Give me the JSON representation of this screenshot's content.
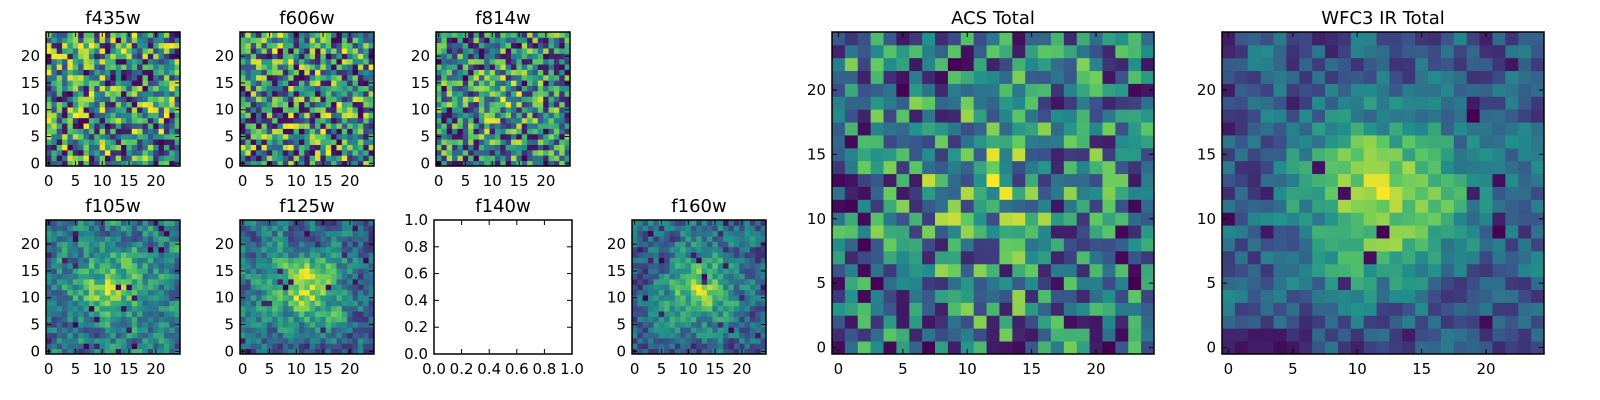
{
  "chart_data": [
    {
      "type": "heatmap",
      "title": "f435w",
      "n": 25,
      "seed": 11,
      "contrast": 1.0,
      "smooth": 0,
      "blob": 0,
      "xticks": [
        0,
        5,
        10,
        15,
        20
      ],
      "yticks": [
        0,
        5,
        10,
        15,
        20
      ],
      "xlim": [
        -0.5,
        24.5
      ],
      "ylim": [
        -0.5,
        24.5
      ]
    },
    {
      "type": "heatmap",
      "title": "f606w",
      "n": 25,
      "seed": 23,
      "contrast": 1.0,
      "smooth": 0,
      "blob": 0,
      "xticks": [
        0,
        5,
        10,
        15,
        20
      ],
      "yticks": [
        0,
        5,
        10,
        15,
        20
      ],
      "xlim": [
        -0.5,
        24.5
      ],
      "ylim": [
        -0.5,
        24.5
      ]
    },
    {
      "type": "heatmap",
      "title": "f814w",
      "n": 25,
      "seed": 37,
      "contrast": 1.0,
      "smooth": 0,
      "blob": 0.15,
      "xticks": [
        0,
        5,
        10,
        15,
        20
      ],
      "yticks": [
        0,
        5,
        10,
        15,
        20
      ],
      "xlim": [
        -0.5,
        24.5
      ],
      "ylim": [
        -0.5,
        24.5
      ]
    },
    {
      "type": "heatmap",
      "title": "f105w",
      "n": 25,
      "seed": 41,
      "contrast": 1.0,
      "smooth": 1,
      "blob": 0.35,
      "xticks": [
        0,
        5,
        10,
        15,
        20
      ],
      "yticks": [
        0,
        5,
        10,
        15,
        20
      ],
      "xlim": [
        -0.5,
        24.5
      ],
      "ylim": [
        -0.5,
        24.5
      ]
    },
    {
      "type": "heatmap",
      "title": "f125w",
      "n": 25,
      "seed": 53,
      "contrast": 1.0,
      "smooth": 1,
      "blob": 0.4,
      "xticks": [
        0,
        5,
        10,
        15,
        20
      ],
      "yticks": [
        0,
        5,
        10,
        15,
        20
      ],
      "xlim": [
        -0.5,
        24.5
      ],
      "ylim": [
        -0.5,
        24.5
      ]
    },
    {
      "type": "empty",
      "title": "f140w",
      "xticks": [
        "0.0",
        "0.2",
        "0.4",
        "0.6",
        "0.8",
        "1.0"
      ],
      "yticks": [
        "0.0",
        "0.2",
        "0.4",
        "0.6",
        "0.8",
        "1.0"
      ],
      "xlim": [
        0,
        1
      ],
      "ylim": [
        0,
        1
      ]
    },
    {
      "type": "heatmap",
      "title": "f160w",
      "n": 25,
      "seed": 67,
      "contrast": 1.0,
      "smooth": 1,
      "blob": 0.4,
      "xticks": [
        0,
        5,
        10,
        15,
        20
      ],
      "yticks": [
        0,
        5,
        10,
        15,
        20
      ],
      "xlim": [
        -0.5,
        24.5
      ],
      "ylim": [
        -0.5,
        24.5
      ]
    },
    {
      "type": "heatmap",
      "title": "ACS Total",
      "n": 25,
      "seed": 79,
      "contrast": 1.0,
      "smooth": 0,
      "blob": 0.2,
      "xticks": [
        0,
        5,
        10,
        15,
        20
      ],
      "yticks": [
        0,
        5,
        10,
        15,
        20
      ],
      "xlim": [
        -0.5,
        24.5
      ],
      "ylim": [
        -0.5,
        24.5
      ]
    },
    {
      "type": "heatmap",
      "title": "WFC3 IR Total",
      "n": 25,
      "seed": 97,
      "contrast": 1.0,
      "smooth": 1,
      "blob": 0.5,
      "xticks": [
        0,
        5,
        10,
        15,
        20
      ],
      "yticks": [
        0,
        5,
        10,
        15,
        20
      ],
      "xlim": [
        -0.5,
        24.5
      ],
      "ylim": [
        -0.5,
        24.5
      ]
    }
  ],
  "colormap": [
    "#440154",
    "#3b528b",
    "#21918c",
    "#5ec962",
    "#fde725"
  ]
}
